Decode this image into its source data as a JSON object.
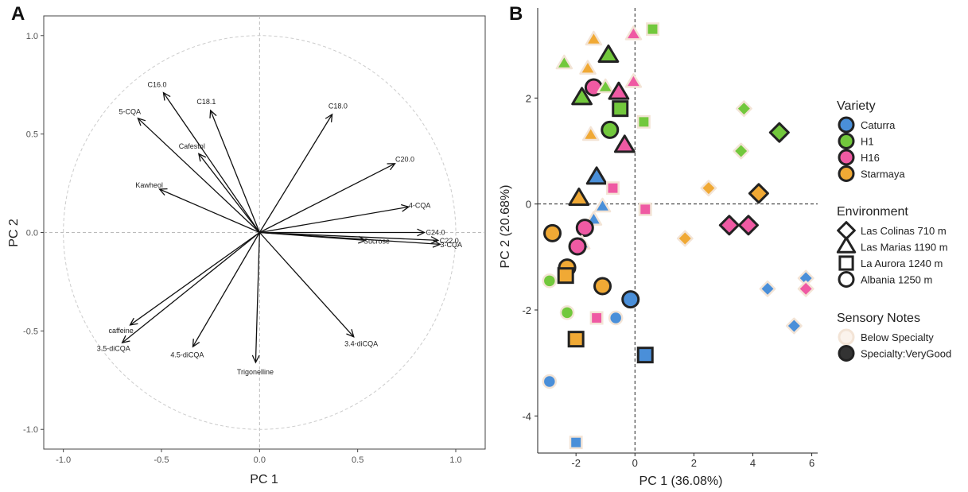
{
  "panels": {
    "a": "A",
    "b": "B"
  },
  "chart_data": [
    {
      "type": "scatter",
      "subtype": "pca-loadings",
      "xlabel": "PC 1",
      "ylabel": "PC 2",
      "xlim": [
        -1.1,
        1.15
      ],
      "ylim": [
        -1.1,
        1.1
      ],
      "xticks": [
        "-1.0",
        "-0.5",
        "0.0",
        "0.5",
        "1.0"
      ],
      "yticks": [
        "1.0",
        "0.5",
        "0.0",
        "-0.5",
        "-1.0"
      ],
      "xtick_values": [
        -1.0,
        -0.5,
        0.0,
        0.5,
        1.0
      ],
      "ytick_values": [
        1.0,
        0.5,
        0.0,
        -0.5,
        -1.0
      ],
      "grid": false,
      "unit_circle": true,
      "vectors": [
        {
          "label": "C16.0",
          "x": -0.49,
          "y": 0.71
        },
        {
          "label": "5-CQA",
          "x": -0.62,
          "y": 0.58
        },
        {
          "label": "C18.1",
          "x": -0.25,
          "y": 0.62
        },
        {
          "label": "Cafestol",
          "x": -0.31,
          "y": 0.4
        },
        {
          "label": "Kawheol",
          "x": -0.51,
          "y": 0.22
        },
        {
          "label": "C18.0",
          "x": 0.37,
          "y": 0.6
        },
        {
          "label": "C20.0",
          "x": 0.69,
          "y": 0.35
        },
        {
          "label": "4-CQA",
          "x": 0.76,
          "y": 0.13
        },
        {
          "label": "C24.0",
          "x": 0.84,
          "y": 0.0
        },
        {
          "label": "C22.0",
          "x": 0.91,
          "y": -0.04
        },
        {
          "label": "3-CQA",
          "x": 0.92,
          "y": -0.06
        },
        {
          "label": "Sucrose",
          "x": 0.54,
          "y": -0.04
        },
        {
          "label": "caffeine",
          "x": -0.66,
          "y": -0.47
        },
        {
          "label": "3.5-diCQA",
          "x": -0.7,
          "y": -0.56
        },
        {
          "label": "4.5-diCQA",
          "x": -0.34,
          "y": -0.58
        },
        {
          "label": "Trigonelline",
          "x": -0.02,
          "y": -0.66
        },
        {
          "label": "3.4-diCQA",
          "x": 0.48,
          "y": -0.53
        }
      ]
    },
    {
      "type": "scatter",
      "subtype": "pca-scores",
      "xlabel": "PC 1 (36.08%)",
      "ylabel": "PC 2 (20.68%)",
      "xlim": [
        -3.3,
        6.2
      ],
      "ylim": [
        -4.7,
        3.7
      ],
      "xticks": [
        "-2",
        "0",
        "2",
        "4",
        "6"
      ],
      "yticks": [
        "2",
        "0",
        "-2",
        "-4"
      ],
      "xtick_values": [
        -2,
        0,
        2,
        4,
        6
      ],
      "ytick_values": [
        2,
        0,
        -2,
        -4
      ],
      "grid": false,
      "reference_lines": "dashed at x=0 and y=0",
      "legend_position": "right",
      "colors": {
        "Caturra": "#4a8fd9",
        "H1": "#72c83c",
        "H16": "#ef5aa3",
        "Starmaya": "#f0a935"
      },
      "legend": {
        "variety": {
          "title": "Variety",
          "items": [
            "Caturra",
            "H1",
            "H16",
            "Starmaya"
          ]
        },
        "environment": {
          "title": "Environment",
          "items": [
            {
              "label": "Las Colinas 710 m",
              "shape": "diamond"
            },
            {
              "label": "Las Marias 1190 m",
              "shape": "triangle"
            },
            {
              "label": "La Aurora 1240 m",
              "shape": "square"
            },
            {
              "label": "Albania 1250 m",
              "shape": "circle"
            }
          ]
        },
        "sensory": {
          "title": "Sensory Notes",
          "items": [
            {
              "label": "Below Specialty",
              "outline": "#f3e4d6"
            },
            {
              "label": "Specialty:VeryGood",
              "outline": "#222222"
            }
          ]
        }
      },
      "points": [
        {
          "x": 0.6,
          "y": 3.3,
          "variety": "H1",
          "shape": "square",
          "specialty": false
        },
        {
          "x": -0.05,
          "y": 3.2,
          "variety": "H16",
          "shape": "triangle",
          "specialty": false
        },
        {
          "x": -1.4,
          "y": 3.1,
          "variety": "Starmaya",
          "shape": "triangle",
          "specialty": false
        },
        {
          "x": -0.9,
          "y": 2.8,
          "variety": "H1",
          "shape": "triangle",
          "specialty": true
        },
        {
          "x": -2.4,
          "y": 2.65,
          "variety": "H1",
          "shape": "triangle",
          "specialty": false
        },
        {
          "x": -1.6,
          "y": 2.55,
          "variety": "Starmaya",
          "shape": "triangle",
          "specialty": false
        },
        {
          "x": -0.05,
          "y": 2.3,
          "variety": "H16",
          "shape": "triangle",
          "specialty": false
        },
        {
          "x": -1.4,
          "y": 2.2,
          "variety": "H16",
          "shape": "circle",
          "specialty": true
        },
        {
          "x": -1.0,
          "y": 2.2,
          "variety": "H1",
          "shape": "triangle",
          "specialty": false
        },
        {
          "x": -0.55,
          "y": 2.1,
          "variety": "H16",
          "shape": "triangle",
          "specialty": true
        },
        {
          "x": -1.8,
          "y": 2.0,
          "variety": "H1",
          "shape": "triangle",
          "specialty": true
        },
        {
          "x": -0.5,
          "y": 1.8,
          "variety": "H1",
          "shape": "square",
          "specialty": true
        },
        {
          "x": 3.7,
          "y": 1.8,
          "variety": "H1",
          "shape": "diamond",
          "specialty": false
        },
        {
          "x": 0.3,
          "y": 1.55,
          "variety": "H1",
          "shape": "square",
          "specialty": false
        },
        {
          "x": -0.85,
          "y": 1.4,
          "variety": "H1",
          "shape": "circle",
          "specialty": true
        },
        {
          "x": 4.9,
          "y": 1.35,
          "variety": "H1",
          "shape": "diamond",
          "specialty": true
        },
        {
          "x": -1.5,
          "y": 1.3,
          "variety": "Starmaya",
          "shape": "triangle",
          "specialty": false
        },
        {
          "x": -0.35,
          "y": 1.1,
          "variety": "H16",
          "shape": "triangle",
          "specialty": true
        },
        {
          "x": 3.6,
          "y": 1.0,
          "variety": "H1",
          "shape": "diamond",
          "specialty": false
        },
        {
          "x": -1.3,
          "y": 0.5,
          "variety": "Caturra",
          "shape": "triangle",
          "specialty": true
        },
        {
          "x": -0.75,
          "y": 0.3,
          "variety": "H16",
          "shape": "square",
          "specialty": false
        },
        {
          "x": 2.5,
          "y": 0.3,
          "variety": "Starmaya",
          "shape": "diamond",
          "specialty": false
        },
        {
          "x": 4.2,
          "y": 0.2,
          "variety": "Starmaya",
          "shape": "diamond",
          "specialty": true
        },
        {
          "x": -1.9,
          "y": 0.1,
          "variety": "Starmaya",
          "shape": "triangle",
          "specialty": true
        },
        {
          "x": -1.1,
          "y": -0.05,
          "variety": "Caturra",
          "shape": "triangle",
          "specialty": false
        },
        {
          "x": 0.35,
          "y": -0.1,
          "variety": "H16",
          "shape": "square",
          "specialty": false
        },
        {
          "x": -1.4,
          "y": -0.3,
          "variety": "Caturra",
          "shape": "triangle",
          "specialty": false
        },
        {
          "x": -1.7,
          "y": -0.45,
          "variety": "H16",
          "shape": "circle",
          "specialty": true
        },
        {
          "x": 3.2,
          "y": -0.4,
          "variety": "H16",
          "shape": "diamond",
          "specialty": true
        },
        {
          "x": 3.85,
          "y": -0.4,
          "variety": "H16",
          "shape": "diamond",
          "specialty": true
        },
        {
          "x": -2.8,
          "y": -0.55,
          "variety": "Starmaya",
          "shape": "circle",
          "specialty": true
        },
        {
          "x": 1.7,
          "y": -0.65,
          "variety": "Starmaya",
          "shape": "diamond",
          "specialty": false
        },
        {
          "x": -1.8,
          "y": -0.75,
          "variety": "Caturra",
          "shape": "triangle",
          "specialty": false
        },
        {
          "x": -1.95,
          "y": -0.8,
          "variety": "H16",
          "shape": "circle",
          "specialty": true
        },
        {
          "x": -2.3,
          "y": -1.2,
          "variety": "Starmaya",
          "shape": "circle",
          "specialty": true
        },
        {
          "x": -2.35,
          "y": -1.35,
          "variety": "Starmaya",
          "shape": "square",
          "specialty": true
        },
        {
          "x": -2.9,
          "y": -1.45,
          "variety": "H1",
          "shape": "circle",
          "specialty": false
        },
        {
          "x": 5.8,
          "y": -1.4,
          "variety": "Caturra",
          "shape": "diamond",
          "specialty": false
        },
        {
          "x": -1.1,
          "y": -1.55,
          "variety": "Starmaya",
          "shape": "circle",
          "specialty": true
        },
        {
          "x": 4.5,
          "y": -1.6,
          "variety": "Caturra",
          "shape": "diamond",
          "specialty": false
        },
        {
          "x": 5.8,
          "y": -1.6,
          "variety": "H16",
          "shape": "diamond",
          "specialty": false
        },
        {
          "x": -0.15,
          "y": -1.8,
          "variety": "Caturra",
          "shape": "circle",
          "specialty": true
        },
        {
          "x": -2.3,
          "y": -2.05,
          "variety": "H1",
          "shape": "circle",
          "specialty": false
        },
        {
          "x": -0.65,
          "y": -2.15,
          "variety": "Caturra",
          "shape": "circle",
          "specialty": false
        },
        {
          "x": -1.3,
          "y": -2.15,
          "variety": "H16",
          "shape": "square",
          "specialty": false
        },
        {
          "x": 5.4,
          "y": -2.3,
          "variety": "Caturra",
          "shape": "diamond",
          "specialty": false
        },
        {
          "x": -2.0,
          "y": -2.55,
          "variety": "Starmaya",
          "shape": "square",
          "specialty": true
        },
        {
          "x": 0.35,
          "y": -2.85,
          "variety": "Caturra",
          "shape": "square",
          "specialty": true
        },
        {
          "x": -2.9,
          "y": -3.35,
          "variety": "Caturra",
          "shape": "circle",
          "specialty": false
        },
        {
          "x": -2.0,
          "y": -4.5,
          "variety": "Caturra",
          "shape": "square",
          "specialty": false
        }
      ]
    }
  ]
}
